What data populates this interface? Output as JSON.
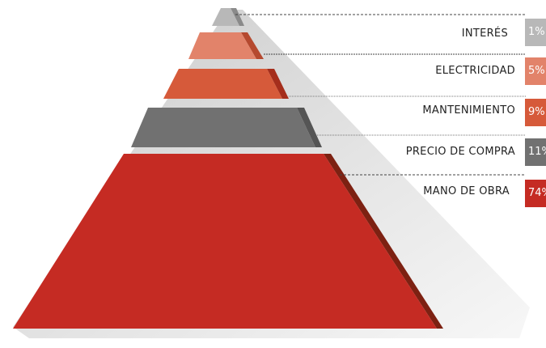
{
  "pyramid": {
    "levels": [
      {
        "label": "INTERÉS",
        "value": "1%",
        "color": "#b8b8b8"
      },
      {
        "label": "ELECTRICIDAD",
        "value": "5%",
        "color": "#e2836a"
      },
      {
        "label": "MANTENIMIENTO",
        "value": "9%",
        "color": "#d65a3a"
      },
      {
        "label": "PRECIO DE COMPRA",
        "value": "11%",
        "color": "#717171"
      },
      {
        "label": "MANO DE OBRA",
        "value": "74%",
        "color": "#c52b23"
      }
    ]
  }
}
